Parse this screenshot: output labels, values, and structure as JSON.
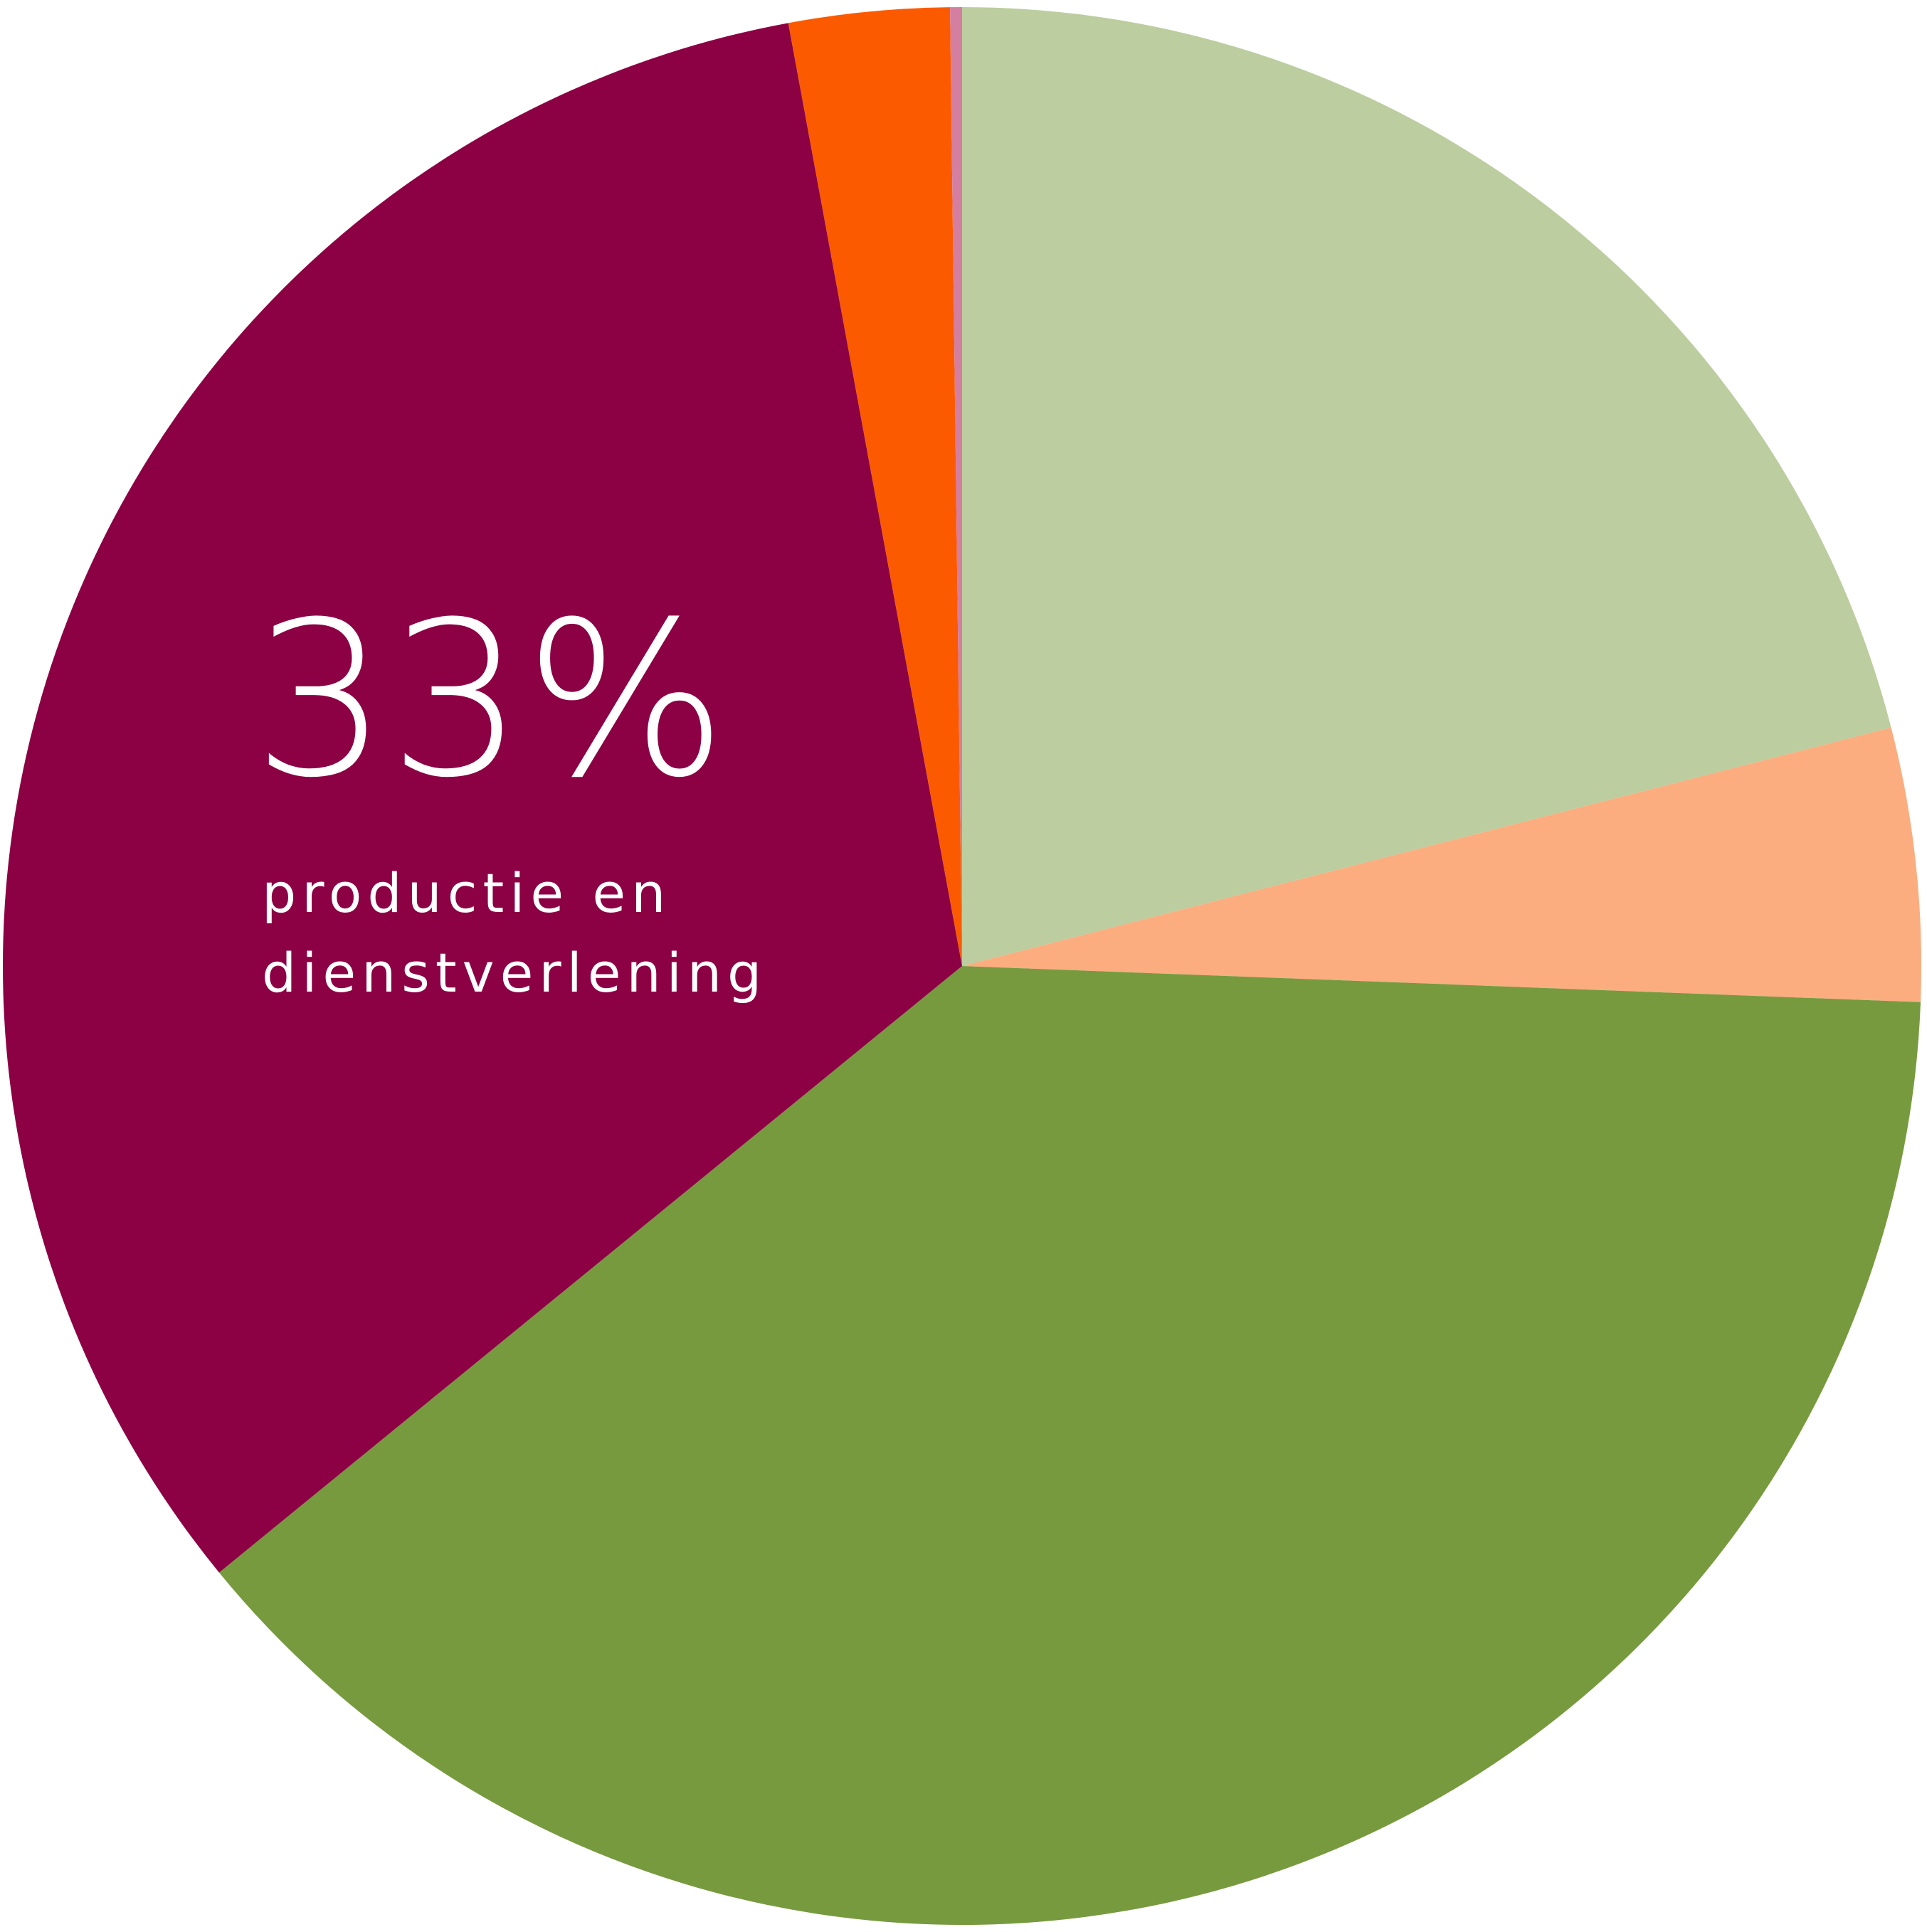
{
  "chart_data": {
    "type": "pie",
    "categories": [
      null,
      null,
      null,
      "productie en dienstverlening",
      null,
      null
    ],
    "values": [
      21,
      4.6,
      38.5,
      33,
      2.7,
      0.2
    ],
    "value_labels": [
      null,
      null,
      null,
      "33%",
      null,
      null
    ],
    "colors": [
      "#bccd9f",
      "#fbad80",
      "#779a3f",
      "#8c0044",
      "#fb5a00",
      "#d47fa0"
    ]
  }
}
